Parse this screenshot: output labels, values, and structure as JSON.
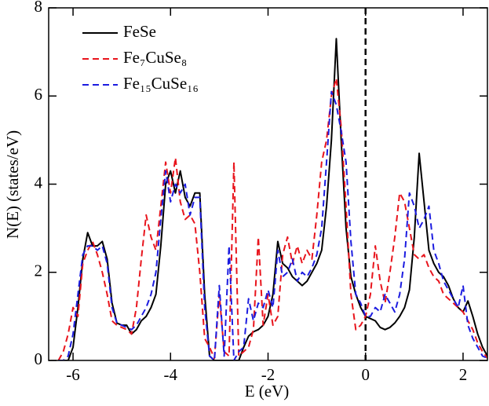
{
  "chart_data": {
    "type": "line",
    "xlabel": "E (eV)",
    "ylabel": "N(E) (states/eV)",
    "xlim": [
      -6.5,
      2.5
    ],
    "ylim": [
      0,
      8
    ],
    "xticks": [
      -6,
      -4,
      -2,
      0,
      2
    ],
    "yticks": [
      0,
      2,
      4,
      6,
      8
    ],
    "vlines": [
      0
    ],
    "legend": "upper left",
    "x": [
      -6.3,
      -6.2,
      -6.1,
      -6.0,
      -5.9,
      -5.8,
      -5.7,
      -5.6,
      -5.5,
      -5.4,
      -5.3,
      -5.2,
      -5.1,
      -5.0,
      -4.9,
      -4.8,
      -4.7,
      -4.6,
      -4.5,
      -4.4,
      -4.3,
      -4.2,
      -4.1,
      -4.0,
      -3.9,
      -3.8,
      -3.7,
      -3.6,
      -3.5,
      -3.4,
      -3.3,
      -3.2,
      -3.1,
      -3.0,
      -2.9,
      -2.8,
      -2.7,
      -2.6,
      -2.5,
      -2.4,
      -2.3,
      -2.2,
      -2.1,
      -2.0,
      -1.9,
      -1.8,
      -1.7,
      -1.6,
      -1.5,
      -1.4,
      -1.3,
      -1.2,
      -1.1,
      -1.0,
      -0.9,
      -0.8,
      -0.7,
      -0.6,
      -0.5,
      -0.4,
      -0.3,
      -0.2,
      -0.1,
      0.0,
      0.1,
      0.2,
      0.3,
      0.4,
      0.5,
      0.6,
      0.7,
      0.8,
      0.9,
      1.0,
      1.1,
      1.2,
      1.3,
      1.4,
      1.5,
      1.6,
      1.7,
      1.8,
      1.9,
      2.0,
      2.1,
      2.2,
      2.3,
      2.4,
      2.5
    ],
    "series": [
      {
        "name": "FeSe",
        "color": "#000000",
        "style": "solid",
        "values": [
          0,
          0,
          0,
          0.3,
          1.2,
          2.3,
          2.9,
          2.6,
          2.6,
          2.7,
          2.3,
          1.3,
          0.85,
          0.8,
          0.8,
          0.6,
          0.7,
          0.9,
          1.0,
          1.2,
          1.5,
          2.6,
          4.0,
          4.3,
          3.8,
          4.3,
          3.7,
          3.5,
          3.8,
          3.8,
          1.5,
          0.1,
          0,
          0,
          0,
          0,
          0,
          0,
          0.3,
          0.55,
          0.65,
          0.7,
          0.8,
          1.0,
          1.5,
          2.7,
          2.2,
          2.1,
          1.9,
          1.8,
          1.7,
          1.8,
          2.0,
          2.2,
          2.5,
          3.5,
          5.0,
          7.3,
          5.0,
          3.0,
          1.9,
          1.5,
          1.2,
          1.0,
          0.95,
          0.9,
          0.75,
          0.7,
          0.75,
          0.85,
          1.0,
          1.2,
          1.6,
          2.8,
          4.7,
          3.6,
          2.5,
          2.2,
          2.0,
          1.9,
          1.7,
          1.4,
          1.2,
          1.1,
          1.35,
          1.0,
          0.6,
          0.3,
          0.1
        ]
      },
      {
        "name": "Fe₇CuSe₈",
        "color": "#e8141c",
        "style": "dashed",
        "values": [
          0,
          0.2,
          0.6,
          1.2,
          1.0,
          2.2,
          2.5,
          2.7,
          2.4,
          2.0,
          1.5,
          0.9,
          0.8,
          0.75,
          0.7,
          0.6,
          1.2,
          2.3,
          3.3,
          2.8,
          2.5,
          3.5,
          4.5,
          3.8,
          4.6,
          3.6,
          3.2,
          3.3,
          3.1,
          2.0,
          0.5,
          0.3,
          0.05,
          1.5,
          0.2,
          0.1,
          4.5,
          0.1,
          0.2,
          0.3,
          0.7,
          2.8,
          0.8,
          1.5,
          0.8,
          1.0,
          2.4,
          2.8,
          2.2,
          2.6,
          2.2,
          2.5,
          2.3,
          3.3,
          4.5,
          5.0,
          6.0,
          6.4,
          5.3,
          3.5,
          1.5,
          0.7,
          0.8,
          1.0,
          1.5,
          2.6,
          1.8,
          1.3,
          2.0,
          2.8,
          3.8,
          3.6,
          3.0,
          2.4,
          2.3,
          2.4,
          2.1,
          1.9,
          1.8,
          1.5,
          1.4,
          1.3,
          1.2,
          1.1,
          0.9,
          0.7,
          0.4,
          0.2,
          0.05
        ]
      },
      {
        "name": "Fe₁₅CuSe₁₆",
        "color": "#1c1ce0",
        "style": "dashed",
        "values": [
          0,
          0,
          0.1,
          0.6,
          1.5,
          2.4,
          2.6,
          2.6,
          2.5,
          2.6,
          2.2,
          1.2,
          0.85,
          0.8,
          0.75,
          0.7,
          0.8,
          1.0,
          1.2,
          1.5,
          2.0,
          3.2,
          4.3,
          3.6,
          4.0,
          3.8,
          4.0,
          3.3,
          3.7,
          3.7,
          1.2,
          0.1,
          0,
          1.7,
          0.1,
          2.6,
          0,
          0.2,
          0.3,
          1.4,
          0.9,
          1.3,
          1.2,
          1.6,
          1.2,
          2.5,
          1.9,
          2.0,
          2.3,
          1.8,
          2.0,
          1.9,
          2.1,
          2.4,
          3.0,
          4.5,
          6.1,
          5.8,
          5.2,
          4.5,
          2.7,
          1.5,
          1.3,
          1.0,
          1.0,
          1.2,
          1.1,
          1.5,
          1.3,
          1.1,
          1.5,
          2.3,
          3.8,
          3.5,
          3.0,
          3.2,
          3.5,
          2.5,
          2.2,
          1.8,
          1.6,
          1.4,
          1.2,
          1.7,
          0.8,
          0.5,
          0.3,
          0.1,
          0.05
        ]
      }
    ]
  }
}
